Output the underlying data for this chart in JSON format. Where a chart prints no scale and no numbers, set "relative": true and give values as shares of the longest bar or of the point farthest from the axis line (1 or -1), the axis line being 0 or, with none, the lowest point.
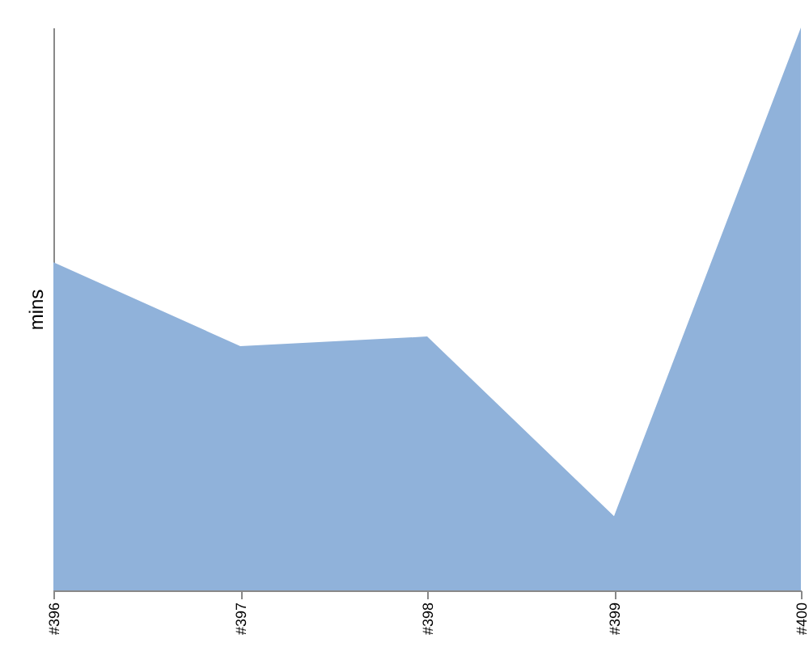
{
  "chart_data": {
    "type": "area",
    "ylabel": "mins",
    "relative": true,
    "categories": [
      "#396",
      "#397",
      "#398",
      "#399",
      "#400"
    ],
    "series": [
      {
        "color": "#90b2da",
        "values": [
          0.583,
          0.434,
          0.451,
          0.132,
          1
        ]
      }
    ]
  }
}
